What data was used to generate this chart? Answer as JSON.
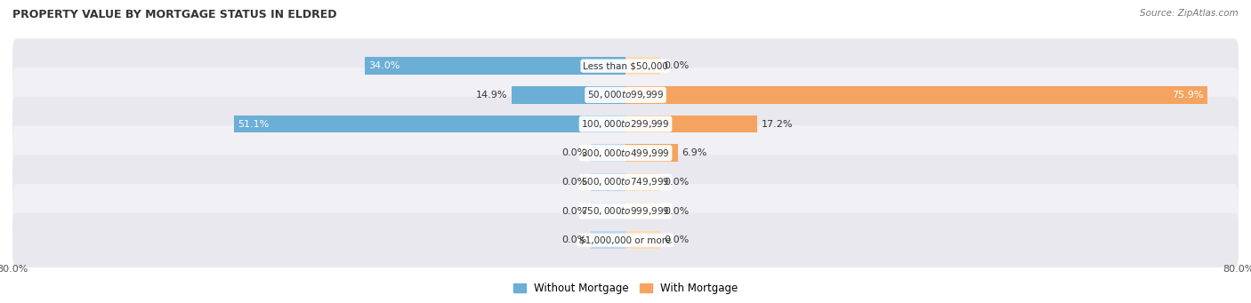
{
  "title": "PROPERTY VALUE BY MORTGAGE STATUS IN ELDRED",
  "source": "Source: ZipAtlas.com",
  "categories": [
    "Less than $50,000",
    "$50,000 to $99,999",
    "$100,000 to $299,999",
    "$300,000 to $499,999",
    "$500,000 to $749,999",
    "$750,000 to $999,999",
    "$1,000,000 or more"
  ],
  "without_mortgage": [
    34.0,
    14.9,
    51.1,
    0.0,
    0.0,
    0.0,
    0.0
  ],
  "with_mortgage": [
    0.0,
    75.9,
    17.2,
    6.9,
    0.0,
    0.0,
    0.0
  ],
  "color_without": "#6BAED6",
  "color_without_light": "#BDD7EE",
  "color_with": "#F4A460",
  "color_with_light": "#FDDCB5",
  "axis_min": -80.0,
  "axis_max": 80.0,
  "background_color": "#ffffff",
  "row_colors": [
    "#e8e8ee",
    "#f0f0f5"
  ],
  "stub_size": 4.5,
  "title_fontsize": 9,
  "label_fontsize": 8,
  "tick_fontsize": 8
}
